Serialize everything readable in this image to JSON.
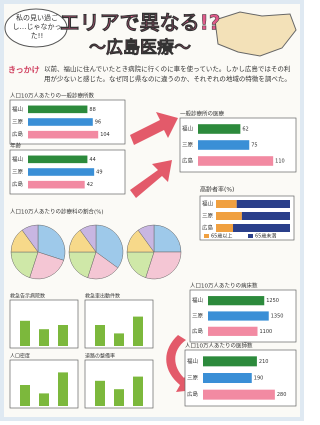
{
  "header": {
    "title": "エリアで異なる!?",
    "subtitle": "～広島医療～",
    "bubble": "私の見い過ごし…じゃなかった!!"
  },
  "intro": {
    "label": "きっかけ",
    "text": "以前、福山に住んでいたとき病院に行くのに車を使っていた。しかし広島ではその利用が少ないと感じた。なぜ同じ県なのに違うのか、それぞれの地域の特徴を調べた。"
  },
  "hbars": [
    {
      "title": "人口10万人あたりの一般診療所数",
      "xlim": [
        0,
        120
      ],
      "rows": [
        {
          "label": "福山",
          "value": 88
        },
        {
          "label": "三原",
          "value": 96
        },
        {
          "label": "広島",
          "value": 104
        }
      ]
    },
    {
      "title": "年齢",
      "xlim": [
        0,
        60
      ],
      "rows": [
        {
          "label": "福山",
          "value": 44
        },
        {
          "label": "三原",
          "value": 49
        },
        {
          "label": "広島",
          "value": 42
        }
      ]
    },
    {
      "title": "一般診療所の医療",
      "xlim": [
        0,
        120
      ],
      "rows": [
        {
          "label": "福山",
          "value": 62
        },
        {
          "label": "三原",
          "value": 75
        },
        {
          "label": "広島",
          "value": 110
        }
      ]
    },
    {
      "title": "人口10万人あたりの病床数",
      "xlim": [
        0,
        1600
      ],
      "rows": [
        {
          "label": "福山",
          "value": 1250
        },
        {
          "label": "三原",
          "value": 1350
        },
        {
          "label": "広島",
          "value": 1100
        }
      ]
    },
    {
      "title": "人口10万人あたりの医師数",
      "xlim": [
        0,
        300
      ],
      "rows": [
        {
          "label": "福山",
          "value": 210
        },
        {
          "label": "三原",
          "value": 190
        },
        {
          "label": "広島",
          "value": 280
        }
      ]
    }
  ],
  "stacked": {
    "title": "高齢者率(%)",
    "legend": [
      "65歳以上",
      "65歳未満"
    ],
    "rows": [
      {
        "label": "福山",
        "values": [
          28,
          72
        ]
      },
      {
        "label": "三原",
        "values": [
          35,
          65
        ]
      },
      {
        "label": "広島",
        "values": [
          23,
          77
        ]
      }
    ]
  },
  "pies": {
    "title": "人口10万人あたりの診療科の割合(%)",
    "slices": [
      [
        30,
        25,
        20,
        15,
        10
      ],
      [
        35,
        20,
        20,
        15,
        10
      ],
      [
        25,
        30,
        20,
        15,
        10
      ]
    ]
  },
  "columns": [
    {
      "title": "救急告示病院数",
      "values": [
        6,
        4,
        5
      ]
    },
    {
      "title": "救急車出動件数",
      "values": [
        5,
        3,
        7
      ]
    },
    {
      "title": "人口密度",
      "values": [
        5,
        3,
        8
      ]
    },
    {
      "title": "道路の整備率",
      "values": [
        6,
        4,
        7
      ]
    }
  ]
}
